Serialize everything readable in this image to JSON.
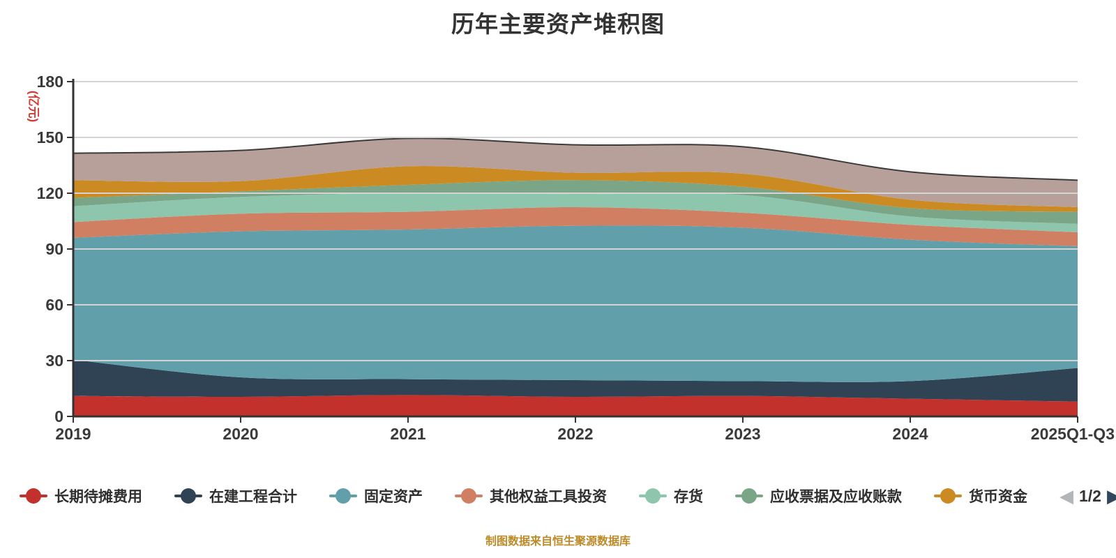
{
  "title": "历年主要资产堆积图",
  "y_axis": {
    "unit": "(亿元)",
    "ticks": [
      0,
      30,
      60,
      90,
      120,
      150,
      180
    ]
  },
  "x_axis": {
    "labels": [
      "2019",
      "2020",
      "2021",
      "2022",
      "2023",
      "2024",
      "2025Q1-Q3"
    ]
  },
  "footer": "制图数据来自恒生聚源数据库",
  "colors": {
    "background": "#ffffff",
    "title_text": "#333333",
    "axis": "#333333",
    "tick_label": "#3a3a3a",
    "gridline": "#d4d4d4",
    "y_unit_text": "#d43a32",
    "footer_text": "#bd8a28",
    "legend_text": "#2f2f2f",
    "top_line_stroke": "#2b2b2b"
  },
  "legend": {
    "items": [
      {
        "label": "长期待摊费用",
        "color": "#c3312c"
      },
      {
        "label": "在建工程合计",
        "color": "#2f4355"
      },
      {
        "label": "固定资产",
        "color": "#61a0ab"
      },
      {
        "label": "其他权益工具投资",
        "color": "#d07f62"
      },
      {
        "label": "存货",
        "color": "#8ec6ad"
      },
      {
        "label": "应收票据及应收账款",
        "color": "#7aa687"
      },
      {
        "label": "货币资金",
        "color": "#cc8a23"
      }
    ],
    "pager": {
      "prev_icon": "◀",
      "label": "1/2",
      "next_icon": "▶",
      "prev_color": "#b3b6b9",
      "next_color": "#31485c"
    }
  },
  "chart_data": {
    "type": "area",
    "stacked": true,
    "smooth": true,
    "title": "历年主要资产堆积图",
    "categories": [
      "2019",
      "2020",
      "2021",
      "2022",
      "2023",
      "2024",
      "2025Q1-Q3"
    ],
    "ylabel": "(亿元)",
    "ylim": [
      0,
      180
    ],
    "grid": true,
    "legend_position": "bottom",
    "series": [
      {
        "name": "长期待摊费用",
        "color": "#c3312c",
        "values": [
          11,
          10.5,
          11.5,
          10.5,
          11,
          9.5,
          8
        ]
      },
      {
        "name": "在建工程合计",
        "color": "#2f4355",
        "values": [
          19.5,
          10.5,
          8.5,
          9,
          8,
          9.5,
          18
        ]
      },
      {
        "name": "固定资产",
        "color": "#61a0ab",
        "values": [
          65.5,
          78.5,
          80.5,
          83,
          82.5,
          76,
          65.5
        ]
      },
      {
        "name": "其他权益工具投资",
        "color": "#d07f62",
        "values": [
          8.5,
          9.5,
          9.5,
          10,
          8,
          8,
          7.5
        ]
      },
      {
        "name": "存货",
        "color": "#8ec6ad",
        "values": [
          8.5,
          9,
          10,
          7,
          9.5,
          4.5,
          4.5
        ]
      },
      {
        "name": "应收票据及应收账款",
        "color": "#7aa687",
        "values": [
          4.5,
          3,
          4.5,
          7.5,
          4.5,
          4.5,
          6.5
        ]
      },
      {
        "name": "货币资金",
        "color": "#cc8a23",
        "values": [
          9.5,
          5.5,
          10,
          4,
          7,
          4.5,
          2.5
        ]
      },
      {
        "name": "",
        "color": "#b7a09a",
        "values": [
          14.5,
          16.5,
          15,
          15,
          14.5,
          15,
          14.5
        ],
        "in_visible_legend": false
      }
    ]
  }
}
